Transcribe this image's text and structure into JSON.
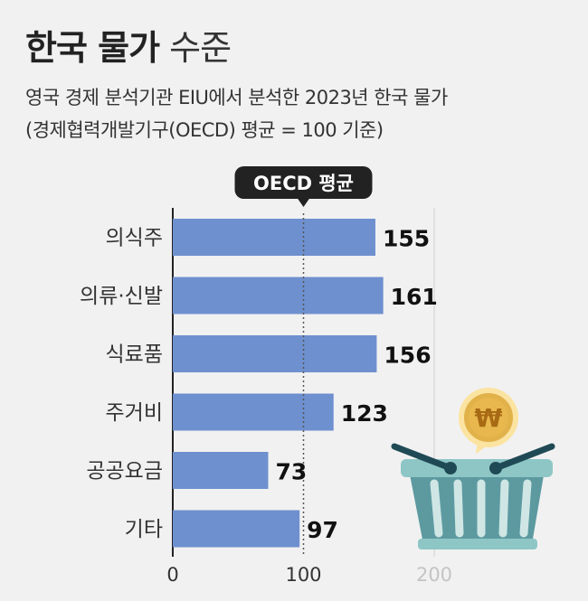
{
  "header": {
    "title_bold": "한국 물가",
    "title_light": "수준",
    "subtitle_line1": "영국 경제 분석기관 EIU에서 분석한 2023년 한국 물가",
    "subtitle_line2": "(경제협력개발기구(OECD) 평균 = 100 기준)"
  },
  "colors": {
    "bar": "#6e90cf",
    "badge": "#222222",
    "gridline": "#555555"
  },
  "chart_data": {
    "type": "bar",
    "orientation": "horizontal",
    "categories": [
      "의식주",
      "의류·신발",
      "식료품",
      "주거비",
      "공공요금",
      "기타"
    ],
    "values": [
      155,
      161,
      156,
      123,
      73,
      97
    ],
    "xlim": [
      0,
      200
    ],
    "ticks": [
      "0",
      "100",
      "200"
    ],
    "reference_value": 100,
    "reference_label": "OECD 평균"
  },
  "decoration": {
    "icon": "shopping-basket-icon",
    "coin_icon": "won-coin-icon",
    "coin_symbol": "₩"
  }
}
